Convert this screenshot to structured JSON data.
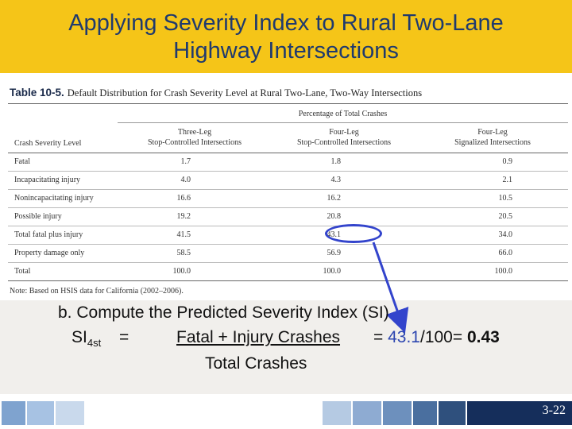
{
  "title_lines": [
    "Applying Severity Index to Rural Two-Lane",
    "Highway Intersections"
  ],
  "table": {
    "number": "Table 10-5.",
    "caption": "Default Distribution for Crash Severity Level at Rural Two-Lane, Two-Way Intersections",
    "group_header": "Percentage of Total Crashes",
    "row_header": "Crash Severity Level",
    "columns": [
      [
        "Three-Leg",
        "Stop-Controlled Intersections"
      ],
      [
        "Four-Leg",
        "Stop-Controlled Intersections"
      ],
      [
        "Four-Leg",
        "Signalized Intersections"
      ]
    ],
    "rows": [
      {
        "label": "Fatal",
        "values": [
          "1.7",
          "1.8",
          "0.9"
        ]
      },
      {
        "label": "Incapacitating injury",
        "values": [
          "4.0",
          "4.3",
          "2.1"
        ]
      },
      {
        "label": "Nonincapacitating injury",
        "values": [
          "16.6",
          "16.2",
          "10.5"
        ]
      },
      {
        "label": "Possible injury",
        "values": [
          "19.2",
          "20.8",
          "20.5"
        ]
      },
      {
        "label": "Total fatal plus injury",
        "values": [
          "41.5",
          "43.1",
          "34.0"
        ]
      },
      {
        "label": "Property damage only",
        "values": [
          "58.5",
          "56.9",
          "66.0"
        ]
      },
      {
        "label": "Total",
        "values": [
          "100.0",
          "100.0",
          "100.0"
        ]
      }
    ],
    "note": "Note: Based on HSIS data for California (2002–2006)."
  },
  "content": {
    "line1": "b. Compute the Predicted Severity Index (SI)",
    "si_label": "SI",
    "si_sub": "4st",
    "equals": "=",
    "numerator": "Fatal + Injury Crashes",
    "calc_eq": " = ",
    "calc_value": "43.1",
    "calc_rest": "/100= ",
    "calc_result": "0.43",
    "denominator": "Total Crashes"
  },
  "footer": {
    "slide_number": "3-22",
    "colors": [
      "#7fa3cf",
      "#a7c2e3",
      "#c9d9ec",
      "#ffffff",
      "#b5cae3",
      "#8eabd2",
      "#6d90bd",
      "#4a6f9f",
      "#2f507d",
      "#152e5b"
    ]
  },
  "colors": {
    "header_bg": "#f5c518",
    "title_text": "#1f3a6e",
    "highlight": "#3344cc"
  }
}
